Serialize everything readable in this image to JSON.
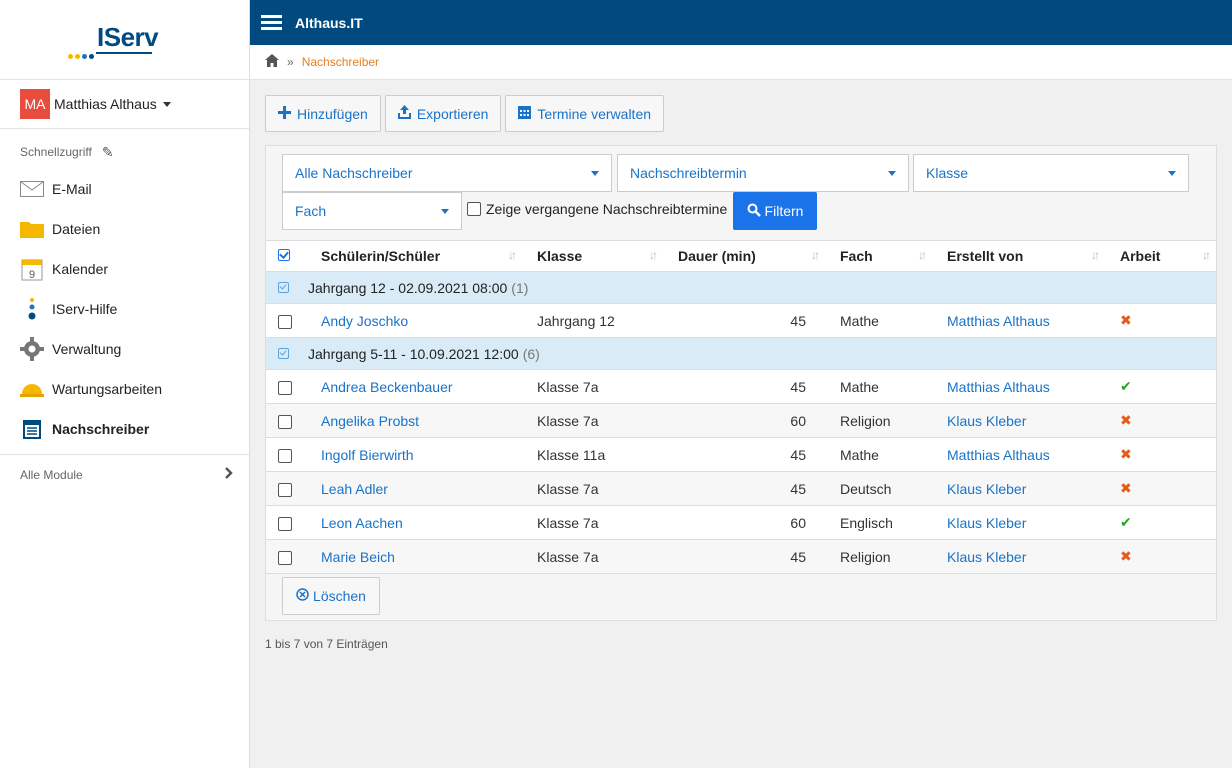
{
  "app": {
    "logo_text": "IServ",
    "topbar_title": "Althaus.IT"
  },
  "user": {
    "initials": "MA",
    "name": "Matthias Althaus"
  },
  "sidebar": {
    "quick_access": "Schnellzugriff",
    "items": [
      {
        "label": "E-Mail",
        "icon": "mail-icon"
      },
      {
        "label": "Dateien",
        "icon": "folder-icon"
      },
      {
        "label": "Kalender",
        "icon": "calendar-icon"
      },
      {
        "label": "IServ-Hilfe",
        "icon": "help-icon"
      },
      {
        "label": "Verwaltung",
        "icon": "gear-icon"
      },
      {
        "label": "Wartungsarbeiten",
        "icon": "helmet-icon"
      },
      {
        "label": "Nachschreiber",
        "icon": "list-icon"
      }
    ],
    "all_modules": "Alle Module"
  },
  "breadcrumb": {
    "current": "Nachschreiber",
    "separator": "»"
  },
  "toolbar": {
    "add": "Hinzufügen",
    "export": "Exportieren",
    "manage": "Termine verwalten"
  },
  "filters": {
    "all": "Alle Nachschreiber",
    "date": "Nachschreibtermin",
    "class": "Klasse",
    "subject": "Fach",
    "past_label": "Zeige vergangene Nachschreibtermine",
    "filter_button": "Filtern"
  },
  "table": {
    "headers": [
      "Schülerin/Schüler",
      "Klasse",
      "Dauer (min)",
      "Fach",
      "Erstellt von",
      "Arbeit"
    ],
    "groups": [
      {
        "label": "Jahrgang 12 - 02.09.2021 08:00",
        "count": "(1)",
        "rows": [
          {
            "student": "Andy Joschko",
            "class": "Jahrgang 12",
            "duration": "45",
            "subject": "Mathe",
            "creator": "Matthias Althaus",
            "work": "✖"
          }
        ]
      },
      {
        "label": "Jahrgang 5-11 - 10.09.2021 12:00",
        "count": "(6)",
        "rows": [
          {
            "student": "Andrea Beckenbauer",
            "class": "Klasse 7a",
            "duration": "45",
            "subject": "Mathe",
            "creator": "Matthias Althaus",
            "work": "✔"
          },
          {
            "student": "Angelika Probst",
            "class": "Klasse 7a",
            "duration": "60",
            "subject": "Religion",
            "creator": "Klaus Kleber",
            "work": "✖"
          },
          {
            "student": "Ingolf Bierwirth",
            "class": "Klasse 11a",
            "duration": "45",
            "subject": "Mathe",
            "creator": "Matthias Althaus",
            "work": "✖"
          },
          {
            "student": "Leah Adler",
            "class": "Klasse 7a",
            "duration": "45",
            "subject": "Deutsch",
            "creator": "Klaus Kleber",
            "work": "✖"
          },
          {
            "student": "Leon Aachen",
            "class": "Klasse 7a",
            "duration": "60",
            "subject": "Englisch",
            "creator": "Klaus Kleber",
            "work": "✔"
          },
          {
            "student": "Marie Beich",
            "class": "Klasse 7a",
            "duration": "45",
            "subject": "Religion",
            "creator": "Klaus Kleber",
            "work": "✖"
          }
        ]
      }
    ]
  },
  "delete_button": "Löschen",
  "info": "1 bis 7 von 7 Einträgen",
  "colors": {
    "brand": "#004a80",
    "link": "#1a73c7",
    "accent": "#e67e22",
    "ok": "#27a327",
    "no": "#e65a1c"
  }
}
